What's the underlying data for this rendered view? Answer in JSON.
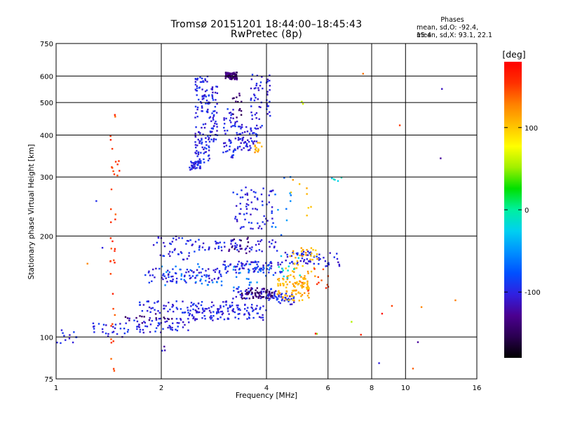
{
  "header": {
    "title_line1": "Tromsø 20151201 18:44:00–18:45:43",
    "title_line2": "RwPretec (8p)"
  },
  "stats": {
    "title": "Phases",
    "o_line": "mean, sd,O: -92.4, 15.4",
    "x_line": "mean, sd,X:  93.1, 22.1"
  },
  "colorbar": {
    "unit_label": "[deg]",
    "ticks": [
      100,
      0,
      -100
    ],
    "range": [
      -180,
      180
    ],
    "palette": [
      "#000000",
      "#2a0050",
      "#4b0090",
      "#3020e0",
      "#0050ff",
      "#0090ff",
      "#00d0f0",
      "#00f0a0",
      "#00e000",
      "#a0f000",
      "#ffff00",
      "#ffc000",
      "#ff8000",
      "#ff3000",
      "#ff0000"
    ]
  },
  "chart_data": {
    "type": "scatter",
    "xlabel": "Frequency [MHz]",
    "ylabel": "Stationary phase Virtual Height [km]",
    "xscale": "log2",
    "yscale": "log",
    "xlim": [
      1,
      16
    ],
    "ylim": [
      75,
      750
    ],
    "xticks": [
      1,
      2,
      4,
      6,
      8,
      10,
      16
    ],
    "yticks": [
      75,
      100,
      200,
      300,
      400,
      500,
      600,
      750
    ],
    "grid": true,
    "series": [
      {
        "phase_deg": -100,
        "clusters": [
          {
            "f": [
              1.0,
              1.15
            ],
            "h": [
              95,
              105
            ],
            "n": 12
          },
          {
            "f": [
              1.25,
              1.6
            ],
            "h": [
              100,
              110
            ],
            "n": 25
          },
          {
            "f": [
              1.6,
              2.4
            ],
            "h": [
              103,
              115
            ],
            "n": 60
          },
          {
            "f": [
              2.4,
              4.0
            ],
            "h": [
              112,
              125
            ],
            "n": 110
          },
          {
            "f": [
              4.0,
              4.8
            ],
            "h": [
              125,
              135
            ],
            "n": 40
          },
          {
            "f": [
              1.7,
              3.2
            ],
            "h": [
              118,
              128
            ],
            "n": 70
          },
          {
            "f": [
              3.2,
              4.3
            ],
            "h": [
              130,
              140
            ],
            "n": 50
          },
          {
            "f": [
              1.8,
              3.0
            ],
            "h": [
              145,
              160
            ],
            "n": 80
          },
          {
            "f": [
              3.0,
              4.5
            ],
            "h": [
              155,
              168
            ],
            "n": 80
          },
          {
            "f": [
              4.5,
              5.8
            ],
            "h": [
              165,
              180
            ],
            "n": 45
          },
          {
            "f": [
              1.9,
              2.5
            ],
            "h": [
              170,
              200
            ],
            "n": 40
          },
          {
            "f": [
              2.5,
              4.3
            ],
            "h": [
              180,
              195
            ],
            "n": 60
          },
          {
            "f": [
              3.2,
              4.2
            ],
            "h": [
              210,
              280
            ],
            "n": 70
          },
          {
            "f": [
              2.4,
              2.6
            ],
            "h": [
              315,
              335
            ],
            "n": 40
          },
          {
            "f": [
              2.5,
              2.75
            ],
            "h": [
              330,
              600
            ],
            "n": 120
          },
          {
            "f": [
              2.75,
              2.9
            ],
            "h": [
              380,
              560
            ],
            "n": 50
          },
          {
            "f": [
              3.0,
              3.3
            ],
            "h": [
              340,
              480
            ],
            "n": 50
          },
          {
            "f": [
              3.3,
              3.8
            ],
            "h": [
              360,
              430
            ],
            "n": 60
          },
          {
            "f": [
              3.6,
              3.9
            ],
            "h": [
              420,
              620
            ],
            "n": 35
          },
          {
            "f": [
              4.0,
              4.1
            ],
            "h": [
              450,
              610
            ],
            "n": 20
          },
          {
            "f": [
              5.8,
              6.6
            ],
            "h": [
              160,
              180
            ],
            "n": 15
          }
        ]
      },
      {
        "phase_deg": -140,
        "clusters": [
          {
            "f": [
              3.05,
              3.3
            ],
            "h": [
              585,
              615
            ],
            "n": 70
          },
          {
            "f": [
              3.4,
              4.2
            ],
            "h": [
              130,
              140
            ],
            "n": 50
          },
          {
            "f": [
              3.0,
              3.6
            ],
            "h": [
              175,
              200
            ],
            "n": 15
          },
          {
            "f": [
              3.2,
              3.4
            ],
            "h": [
              440,
              540
            ],
            "n": 15
          },
          {
            "f": [
              1.5,
              2.2
            ],
            "h": [
              110,
              118
            ],
            "n": 15
          }
        ]
      },
      {
        "phase_deg": 110,
        "clusters": [
          {
            "f": [
              4.3,
              5.3
            ],
            "h": [
              128,
              150
            ],
            "n": 90
          },
          {
            "f": [
              4.5,
              5.6
            ],
            "h": [
              150,
              185
            ],
            "n": 45
          },
          {
            "f": [
              3.7,
              3.95
            ],
            "h": [
              355,
              380
            ],
            "n": 12
          },
          {
            "f": [
              4.7,
              5.4
            ],
            "h": [
              230,
              300
            ],
            "n": 8
          }
        ]
      },
      {
        "phase_deg": 150,
        "clusters": [
          {
            "f": [
              1.43,
              1.48
            ],
            "h": [
              78,
              480
            ],
            "n": 35
          },
          {
            "f": [
              1.48,
              1.52
            ],
            "h": [
              300,
              340
            ],
            "n": 5
          },
          {
            "f": [
              4.9,
              6.2
            ],
            "h": [
              135,
              160
            ],
            "n": 12
          }
        ]
      },
      {
        "phase_deg": -20,
        "clusters": [
          {
            "f": [
              4.2,
              5.0
            ],
            "h": [
              145,
              175
            ],
            "n": 12
          },
          {
            "f": [
              6.0,
              6.6
            ],
            "h": [
              290,
              300
            ],
            "n": 5
          }
        ]
      },
      {
        "phase_deg": -60,
        "clusters": [
          {
            "f": [
              2.0,
              3.0
            ],
            "h": [
              140,
              165
            ],
            "n": 25
          },
          {
            "f": [
              3.2,
              4.2
            ],
            "h": [
              140,
              165
            ],
            "n": 25
          },
          {
            "f": [
              4.0,
              4.7
            ],
            "h": [
              200,
              300
            ],
            "n": 12
          }
        ]
      },
      {
        "phase_deg": 140,
        "clusters": [
          {
            "f": [
              7.5,
              7.6
            ],
            "h": [
              605,
              610
            ],
            "n": 1
          },
          {
            "f": [
              9.5,
              9.7
            ],
            "h": [
              425,
              430
            ],
            "n": 1
          },
          {
            "f": [
              10.5,
              10.7
            ],
            "h": [
              80,
              83
            ],
            "n": 1
          },
          {
            "f": [
              9.0,
              9.2
            ],
            "h": [
              120,
              124
            ],
            "n": 1
          },
          {
            "f": [
              11.0,
              11.2
            ],
            "h": [
              120,
              124
            ],
            "n": 1
          },
          {
            "f": [
              13.6,
              13.9
            ],
            "h": [
              128,
              131
            ],
            "n": 1
          },
          {
            "f": [
              1.2,
              1.25
            ],
            "h": [
              163,
              167
            ],
            "n": 1
          }
        ]
      },
      {
        "phase_deg": -110,
        "clusters": [
          {
            "f": [
              12.6,
              12.8
            ],
            "h": [
              540,
              550
            ],
            "n": 1
          },
          {
            "f": [
              12.6,
              12.8
            ],
            "h": [
              340,
              348
            ],
            "n": 1
          },
          {
            "f": [
              8.4,
              8.5
            ],
            "h": [
              83,
              85
            ],
            "n": 1
          },
          {
            "f": [
              10.8,
              11.0
            ],
            "h": [
              94,
              97
            ],
            "n": 1
          },
          {
            "f": [
              1.3,
              1.35
            ],
            "h": [
              250,
              256
            ],
            "n": 1
          },
          {
            "f": [
              1.35,
              1.4
            ],
            "h": [
              183,
              188
            ],
            "n": 1
          },
          {
            "f": [
              2.0,
              2.05
            ],
            "h": [
              90,
              95
            ],
            "n": 3
          }
        ]
      },
      {
        "phase_deg": 60,
        "clusters": [
          {
            "f": [
              5.0,
              5.3
            ],
            "h": [
              495,
              505
            ],
            "n": 2
          },
          {
            "f": [
              6.8,
              7.1
            ],
            "h": [
              110,
              113
            ],
            "n": 1
          },
          {
            "f": [
              5.5,
              6.0
            ],
            "h": [
              100,
              104
            ],
            "n": 1
          }
        ]
      },
      {
        "phase_deg": 175,
        "clusters": [
          {
            "f": [
              5.5,
              5.7
            ],
            "h": [
              102,
              105
            ],
            "n": 1
          },
          {
            "f": [
              7.3,
              7.5
            ],
            "h": [
              101,
              104
            ],
            "n": 1
          },
          {
            "f": [
              8.4,
              8.6
            ],
            "h": [
              117,
              120
            ],
            "n": 1
          }
        ]
      }
    ]
  }
}
